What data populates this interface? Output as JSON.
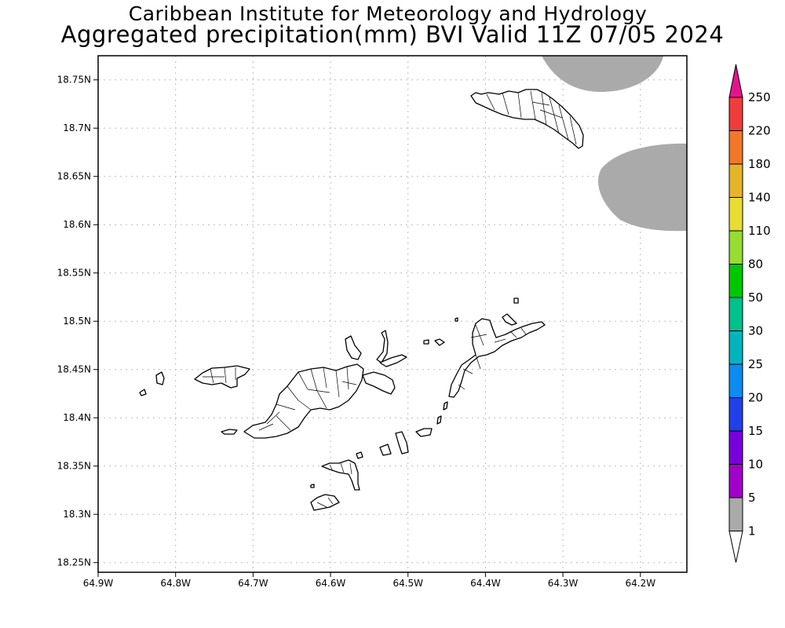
{
  "header": {
    "title_line1": "Caribbean Institute for Meteorology and Hydrology",
    "title_line2": "Aggregated precipitation(mm) BVI Valid 11Z 07/05 2024"
  },
  "map": {
    "region": "British Virgin Islands",
    "lon_range": [
      -64.9,
      -64.14
    ],
    "lat_range": [
      18.24,
      18.775
    ],
    "lat_ticks": [
      {
        "value": 18.75,
        "label": "18.75N"
      },
      {
        "value": 18.7,
        "label": "18.7N"
      },
      {
        "value": 18.65,
        "label": "18.65N"
      },
      {
        "value": 18.6,
        "label": "18.6N"
      },
      {
        "value": 18.55,
        "label": "18.55N"
      },
      {
        "value": 18.5,
        "label": "18.5N"
      },
      {
        "value": 18.45,
        "label": "18.45N"
      },
      {
        "value": 18.4,
        "label": "18.4N"
      },
      {
        "value": 18.35,
        "label": "18.35N"
      },
      {
        "value": 18.3,
        "label": "18.3N"
      },
      {
        "value": 18.25,
        "label": "18.25N"
      }
    ],
    "lon_ticks": [
      {
        "value": -64.9,
        "label": "64.9W"
      },
      {
        "value": -64.8,
        "label": "64.8W"
      },
      {
        "value": -64.7,
        "label": "64.7W"
      },
      {
        "value": -64.6,
        "label": "64.6W"
      },
      {
        "value": -64.5,
        "label": "64.5W"
      },
      {
        "value": -64.4,
        "label": "64.4W"
      },
      {
        "value": -64.3,
        "label": "64.3W"
      },
      {
        "value": -64.2,
        "label": "64.2W"
      }
    ],
    "grid": true,
    "precip_areas": [
      {
        "category": "1-5 mm",
        "color": "#aaaaaa",
        "location": "northeast edge near 18.76N 64.28W"
      },
      {
        "category": "1-5 mm",
        "color": "#aaaaaa",
        "location": "east edge near 18.65N 64.2W"
      }
    ]
  },
  "colorbar": {
    "labels": [
      "1",
      "5",
      "10",
      "15",
      "20",
      "25",
      "30",
      "50",
      "80",
      "110",
      "140",
      "180",
      "220",
      "250"
    ],
    "colors": [
      "#ffffff",
      "#aaaaaa",
      "#a000c8",
      "#7800dc",
      "#2040e8",
      "#0a8cf0",
      "#00b4be",
      "#00c08c",
      "#00c800",
      "#96dc32",
      "#e6dc32",
      "#e6b428",
      "#f07828",
      "#f03c3c",
      "#e6148c"
    ]
  }
}
